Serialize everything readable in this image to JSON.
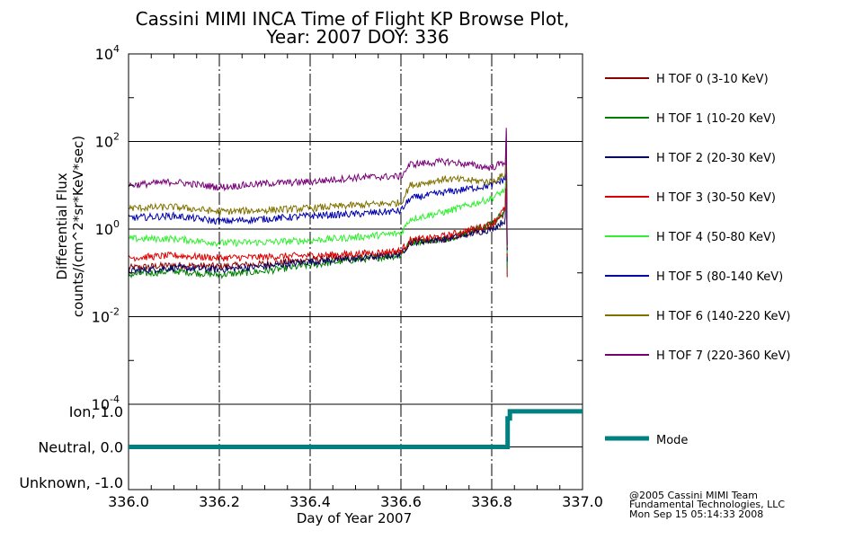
{
  "title_line1": "Cassini MIMI INCA Time of Flight KP Browse Plot,",
  "title_line2": "Year: 2007 DOY: 336",
  "credits": [
    "@2005 Cassini MIMI Team",
    "Fundamental Technologies, LLC",
    "Mon Sep 15 05:14:33 2008"
  ],
  "chart_data": [
    {
      "type": "line",
      "panel": "flux",
      "ylabel_line1": "Differential Flux",
      "ylabel_line2": "counts/(cm^2*sr*KeV*sec)",
      "yscale": "log",
      "ylim": [
        0.0001,
        10000
      ],
      "yticks": [
        {
          "base": "10",
          "exp": "4"
        },
        {
          "base": "10",
          "exp": "2"
        },
        {
          "base": "10",
          "exp": "0"
        },
        {
          "base": "10",
          "exp": "-2"
        },
        {
          "base": "10",
          "exp": "-4"
        }
      ],
      "xlim": [
        336.0,
        337.0
      ],
      "grid": true,
      "legend_position": "right",
      "series": [
        {
          "name": "H TOF 0 (3-10 KeV)",
          "color": "#8b0000",
          "x": [
            336.0,
            336.1,
            336.2,
            336.3,
            336.4,
            336.5,
            336.6,
            336.62,
            336.7,
            336.8,
            336.83
          ],
          "y": [
            0.13,
            0.15,
            0.14,
            0.16,
            0.2,
            0.22,
            0.28,
            0.5,
            0.6,
            1.2,
            2.5
          ]
        },
        {
          "name": "H TOF 1 (10-20 KeV)",
          "color": "#008000",
          "x": [
            336.0,
            336.1,
            336.2,
            336.3,
            336.4,
            336.5,
            336.6,
            336.62,
            336.7,
            336.8,
            336.83
          ],
          "y": [
            0.09,
            0.11,
            0.09,
            0.11,
            0.15,
            0.2,
            0.25,
            0.5,
            0.6,
            1.3,
            2.8
          ]
        },
        {
          "name": "H TOF 2 (20-30 KeV)",
          "color": "#000066",
          "x": [
            336.0,
            336.1,
            336.2,
            336.3,
            336.4,
            336.5,
            336.6,
            336.62,
            336.7,
            336.8,
            336.83
          ],
          "y": [
            0.11,
            0.13,
            0.12,
            0.14,
            0.18,
            0.21,
            0.27,
            0.5,
            0.6,
            1.0,
            1.6
          ]
        },
        {
          "name": "H TOF 3 (30-50 KeV)",
          "color": "#dd0000",
          "x": [
            336.0,
            336.1,
            336.2,
            336.3,
            336.4,
            336.5,
            336.6,
            336.62,
            336.7,
            336.8,
            336.83
          ],
          "y": [
            0.22,
            0.25,
            0.22,
            0.23,
            0.25,
            0.27,
            0.32,
            0.55,
            0.7,
            1.3,
            3.0
          ]
        },
        {
          "name": "H TOF 4 (50-80 KeV)",
          "color": "#33ee33",
          "x": [
            336.0,
            336.1,
            336.2,
            336.3,
            336.4,
            336.5,
            336.6,
            336.62,
            336.7,
            336.8,
            336.83
          ],
          "y": [
            0.6,
            0.6,
            0.48,
            0.5,
            0.55,
            0.65,
            0.8,
            1.7,
            2.5,
            5.0,
            8.0
          ]
        },
        {
          "name": "H TOF 5 (80-140 KeV)",
          "color": "#0000aa",
          "x": [
            336.0,
            336.1,
            336.2,
            336.3,
            336.4,
            336.5,
            336.6,
            336.62,
            336.7,
            336.8,
            336.83
          ],
          "y": [
            1.8,
            2.0,
            1.5,
            1.7,
            2.0,
            2.2,
            2.6,
            5.0,
            7.0,
            10.0,
            14.0
          ]
        },
        {
          "name": "H TOF 6 (140-220 KeV)",
          "color": "#807000",
          "x": [
            336.0,
            336.1,
            336.2,
            336.3,
            336.4,
            336.5,
            336.6,
            336.62,
            336.7,
            336.8,
            336.83
          ],
          "y": [
            3.0,
            3.2,
            2.5,
            2.7,
            3.0,
            3.5,
            4.0,
            10.0,
            14.0,
            12.0,
            18.0
          ]
        },
        {
          "name": "H TOF 7 (220-360 KeV)",
          "color": "#770077",
          "x": [
            336.0,
            336.1,
            336.2,
            336.3,
            336.4,
            336.5,
            336.6,
            336.62,
            336.7,
            336.8,
            336.83
          ],
          "y": [
            10.0,
            12.0,
            9.0,
            11.0,
            12.0,
            15.0,
            16.0,
            30.0,
            35.0,
            25.0,
            35.0
          ]
        }
      ]
    },
    {
      "type": "line",
      "panel": "mode",
      "xlabel": "Day of Year 2007",
      "xlim": [
        336.0,
        337.0
      ],
      "xticks": [
        "336.0",
        "336.2",
        "336.4",
        "336.6",
        "336.8",
        "337.0"
      ],
      "ylim": [
        -1.2,
        1.2
      ],
      "yticks": [
        "Ion, 1.0",
        "Neutral, 0.0",
        "Unknown, -1.0"
      ],
      "grid": true,
      "legend_position": "right",
      "series": [
        {
          "name": "Mode",
          "color": "#008080",
          "x": [
            336.0,
            336.835,
            336.835,
            336.84,
            336.84,
            337.0
          ],
          "y": [
            0.0,
            0.0,
            0.8,
            0.8,
            1.0,
            1.0
          ]
        }
      ]
    }
  ]
}
